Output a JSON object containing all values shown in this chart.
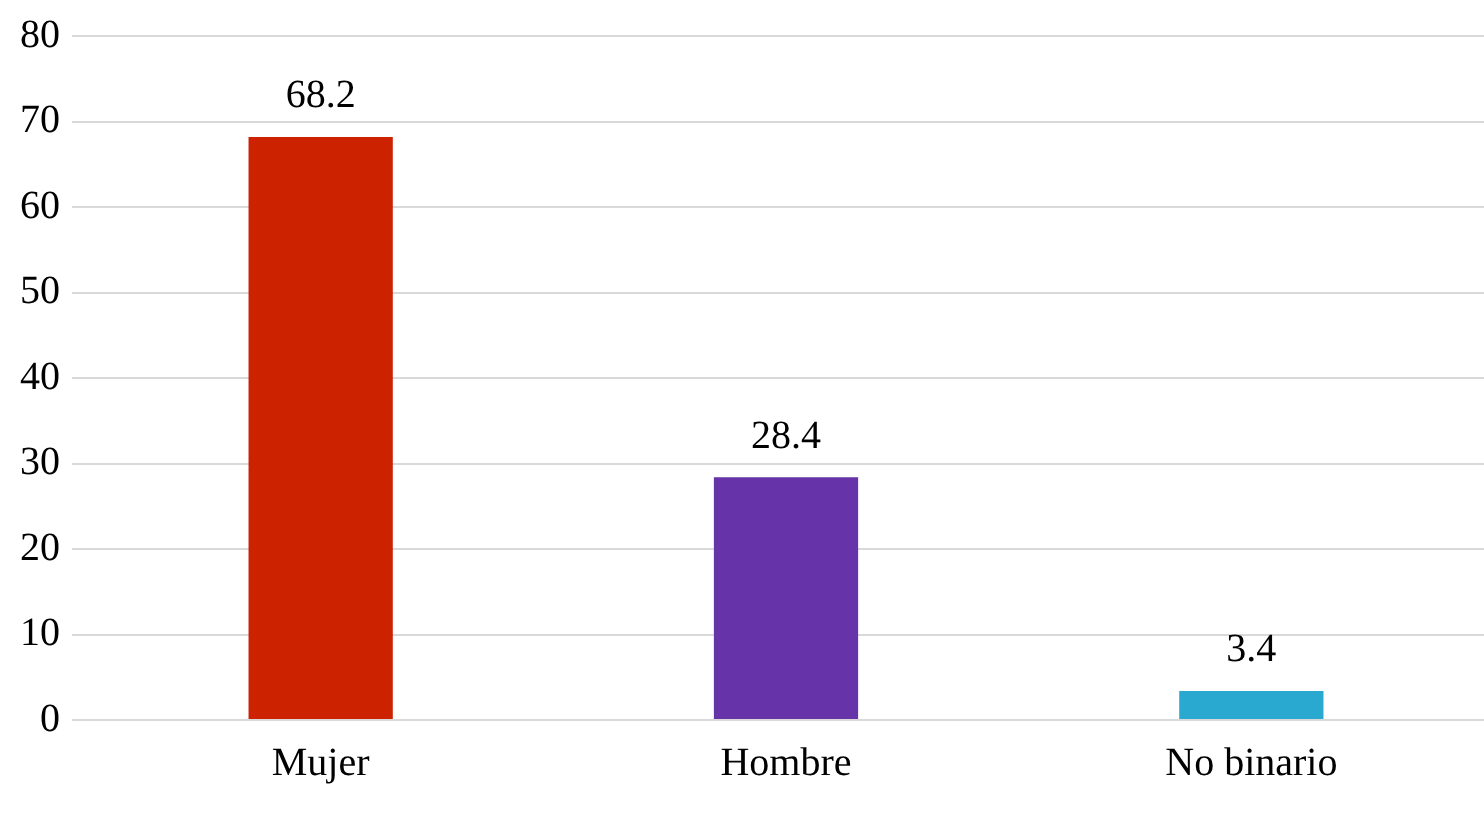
{
  "chart_data": {
    "type": "bar",
    "categories": [
      "Mujer",
      "Hombre",
      "No binario"
    ],
    "values": [
      68.2,
      28.4,
      3.4
    ],
    "colors": [
      "#cc2200",
      "#6633a8",
      "#29a9cf"
    ],
    "ylim": [
      0,
      80
    ],
    "yticks": [
      0,
      10,
      20,
      30,
      40,
      50,
      60,
      70,
      80
    ],
    "grid": "y",
    "data_labels": true
  }
}
